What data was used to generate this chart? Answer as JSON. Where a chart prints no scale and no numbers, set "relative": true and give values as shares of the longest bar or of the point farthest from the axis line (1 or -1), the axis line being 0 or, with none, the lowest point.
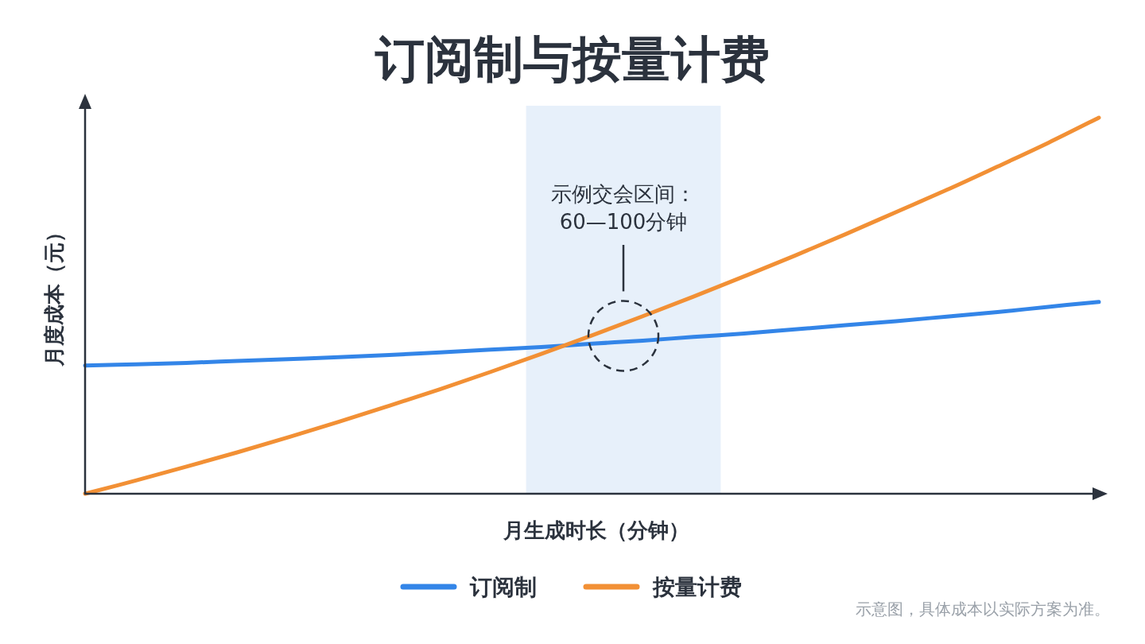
{
  "chart_data": {
    "type": "line",
    "title": "订阅制与按量计费",
    "xlabel": "月生成时长（分钟）",
    "ylabel": "月度成本（元）",
    "categories": [
      null,
      null,
      null,
      null,
      null,
      null,
      null,
      null,
      null,
      null,
      null,
      null,
      null,
      null,
      null,
      null,
      null,
      null,
      null,
      null,
      null
    ],
    "relative": true,
    "series": [
      {
        "name": "订阅制",
        "color": "#3385e8",
        "values": [
          0.341,
          0.344,
          0.348,
          0.353,
          0.358,
          0.363,
          0.369,
          0.376,
          0.383,
          0.39,
          0.399,
          0.407,
          0.417,
          0.426,
          0.437,
          0.448,
          0.459,
          0.471,
          0.483,
          0.497,
          0.51
        ]
      },
      {
        "name": "按量计费",
        "color": "#f29035",
        "values": [
          0,
          0.035,
          0.072,
          0.11,
          0.15,
          0.191,
          0.234,
          0.278,
          0.324,
          0.372,
          0.421,
          0.472,
          0.524,
          0.578,
          0.633,
          0.69,
          0.749,
          0.808,
          0.87,
          0.933,
          1
        ]
      }
    ],
    "legend": "bottom",
    "annotations": [
      "示例交会区间：\n60—100分钟",
      "示意图，具体成本以实际方案为准。"
    ]
  }
}
